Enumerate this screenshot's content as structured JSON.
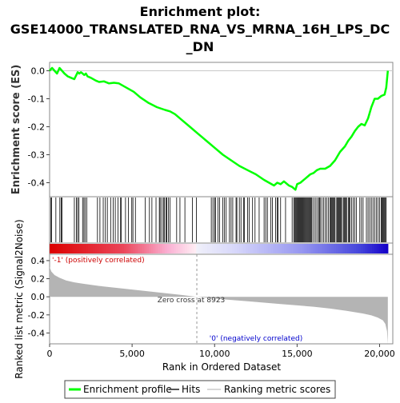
{
  "title_lines": [
    "Enrichment plot:",
    "GSE14000_TRANSLATED_RNA_VS_MRNA_16H_LPS_DC",
    "_DN"
  ],
  "es_ylabel": "Enrichment score (ES)",
  "metric_ylabel": "Ranked list metric (Signal2Noise)",
  "xlabel": "Rank in Ordered Dataset",
  "pos_label": "'-1' (positively correlated)",
  "neg_label": "'0' (negatively correlated)",
  "zero_cross_label": "Zero cross at 8923",
  "legend": {
    "profile": "Enrichment profile",
    "hits": "Hits",
    "metric": "Ranking metric scores"
  },
  "colors": {
    "profile": "#00ff00",
    "hits": "#000000",
    "metric_fill": "#b4b4b4",
    "pos_text": "#cc0000",
    "neg_text": "#0000cc",
    "zero_line": "#c8c8c8"
  },
  "chart_data": {
    "type": "line",
    "x_range": [
      0,
      20800
    ],
    "x_ticks": [
      0,
      5000,
      10000,
      15000,
      20000
    ],
    "x_tick_labels": [
      "0",
      "5,000",
      "10,000",
      "15,000",
      "20,000"
    ],
    "total_rank": 20500,
    "zero_cross": 8923,
    "es_ylim": [
      -0.45,
      0.03
    ],
    "es_ticks": [
      0.0,
      -0.1,
      -0.2,
      -0.3,
      -0.4
    ],
    "es_tick_labels": [
      "0.0",
      "-0.1",
      "-0.2",
      "-0.3",
      "-0.4"
    ],
    "enrichment_profile": {
      "x": [
        0,
        150,
        300,
        450,
        600,
        750,
        900,
        1100,
        1300,
        1500,
        1700,
        1800,
        1900,
        2000,
        2100,
        2200,
        2300,
        2500,
        2800,
        3000,
        3300,
        3600,
        3900,
        4200,
        4500,
        4800,
        5100,
        5500,
        6000,
        6500,
        7000,
        7300,
        7600,
        8000,
        8500,
        9000,
        9500,
        10000,
        10500,
        11000,
        11500,
        12000,
        12500,
        13000,
        13300,
        13600,
        13800,
        14000,
        14200,
        14500,
        14700,
        14900,
        15000,
        15200,
        15500,
        15800,
        16000,
        16200,
        16400,
        16700,
        17000,
        17300,
        17600,
        17900,
        18100,
        18300,
        18500,
        18700,
        18900,
        19100,
        19300,
        19500,
        19700,
        19900,
        20100,
        20300,
        20400,
        20450,
        20500
      ],
      "y": [
        0.0,
        0.01,
        0.0,
        -0.01,
        0.01,
        0.0,
        -0.01,
        -0.02,
        -0.025,
        -0.03,
        -0.005,
        -0.01,
        -0.005,
        -0.01,
        -0.015,
        -0.01,
        -0.02,
        -0.025,
        -0.035,
        -0.04,
        -0.038,
        -0.045,
        -0.043,
        -0.045,
        -0.055,
        -0.065,
        -0.075,
        -0.095,
        -0.115,
        -0.13,
        -0.14,
        -0.145,
        -0.155,
        -0.175,
        -0.2,
        -0.225,
        -0.25,
        -0.275,
        -0.3,
        -0.32,
        -0.34,
        -0.355,
        -0.37,
        -0.39,
        -0.4,
        -0.41,
        -0.4,
        -0.405,
        -0.395,
        -0.41,
        -0.415,
        -0.425,
        -0.405,
        -0.4,
        -0.385,
        -0.37,
        -0.365,
        -0.355,
        -0.35,
        -0.35,
        -0.34,
        -0.32,
        -0.29,
        -0.27,
        -0.25,
        -0.235,
        -0.215,
        -0.2,
        -0.19,
        -0.195,
        -0.17,
        -0.13,
        -0.1,
        -0.1,
        -0.09,
        -0.085,
        -0.06,
        -0.03,
        0.0
      ]
    },
    "hits": [
      80,
      120,
      380,
      620,
      700,
      750,
      1500,
      1620,
      1700,
      1780,
      2000,
      2080,
      2150,
      2250,
      2900,
      3050,
      3250,
      3380,
      3500,
      3700,
      3850,
      3980,
      4150,
      4300,
      4350,
      4600,
      4780,
      4980,
      5050,
      5200,
      5800,
      6050,
      6200,
      6450,
      6650,
      6700,
      6800,
      6900,
      6950,
      7050,
      7100,
      7200,
      7300,
      7700,
      7900,
      8200,
      8650,
      8900,
      9800,
      9900,
      10000,
      10050,
      10200,
      10300,
      10500,
      10600,
      10700,
      10900,
      11000,
      11100,
      11300,
      11350,
      11500,
      11600,
      11750,
      11800,
      12000,
      12100,
      12300,
      12450,
      12700,
      13000,
      13100,
      13200,
      13400,
      13500,
      13700,
      13800,
      13850,
      14000,
      14300,
      14700,
      14800,
      14850,
      14900,
      14950,
      15000,
      15050,
      15100,
      15150,
      15200,
      15250,
      15300,
      15350,
      15400,
      15450,
      15500,
      15550,
      15600,
      15650,
      15700,
      15750,
      15800,
      15850,
      15900,
      16000,
      16100,
      16200,
      16300,
      16350,
      16400,
      16500,
      16600,
      16700,
      16800,
      16900,
      17000,
      17050,
      17100,
      17150,
      17200,
      17250,
      17300,
      17400,
      17450,
      17500,
      17550,
      17600,
      17650,
      17700,
      17800,
      17850,
      17900,
      17950,
      18000,
      18100,
      18150,
      18200,
      18300,
      18400,
      18500,
      18600,
      18800,
      18900,
      19000,
      19200,
      19300,
      19400,
      19500,
      19600,
      19700,
      19800,
      19900,
      20000,
      20100,
      20150,
      20200,
      20250,
      20300,
      20350,
      20400
    ],
    "metric_ylim": [
      -0.52,
      0.47
    ],
    "metric_ticks": [
      0.4,
      0.2,
      0.0,
      -0.2,
      -0.4
    ],
    "metric_tick_labels": [
      "0.4",
      "0.2",
      "0.0",
      "-0.2",
      "-0.4"
    ],
    "metric_scores": {
      "x": [
        0,
        100,
        300,
        600,
        1000,
        1500,
        2000,
        3000,
        4000,
        5000,
        6000,
        7000,
        8000,
        8923,
        10000,
        11000,
        12000,
        13000,
        14000,
        15000,
        16000,
        17000,
        18000,
        19000,
        19500,
        19900,
        20200,
        20350,
        20450,
        20500
      ],
      "y": [
        0.33,
        0.28,
        0.24,
        0.21,
        0.18,
        0.16,
        0.145,
        0.12,
        0.1,
        0.08,
        0.06,
        0.04,
        0.02,
        0.0,
        -0.02,
        -0.035,
        -0.05,
        -0.065,
        -0.08,
        -0.095,
        -0.11,
        -0.13,
        -0.155,
        -0.185,
        -0.205,
        -0.23,
        -0.26,
        -0.3,
        -0.38,
        -0.52
      ]
    }
  }
}
